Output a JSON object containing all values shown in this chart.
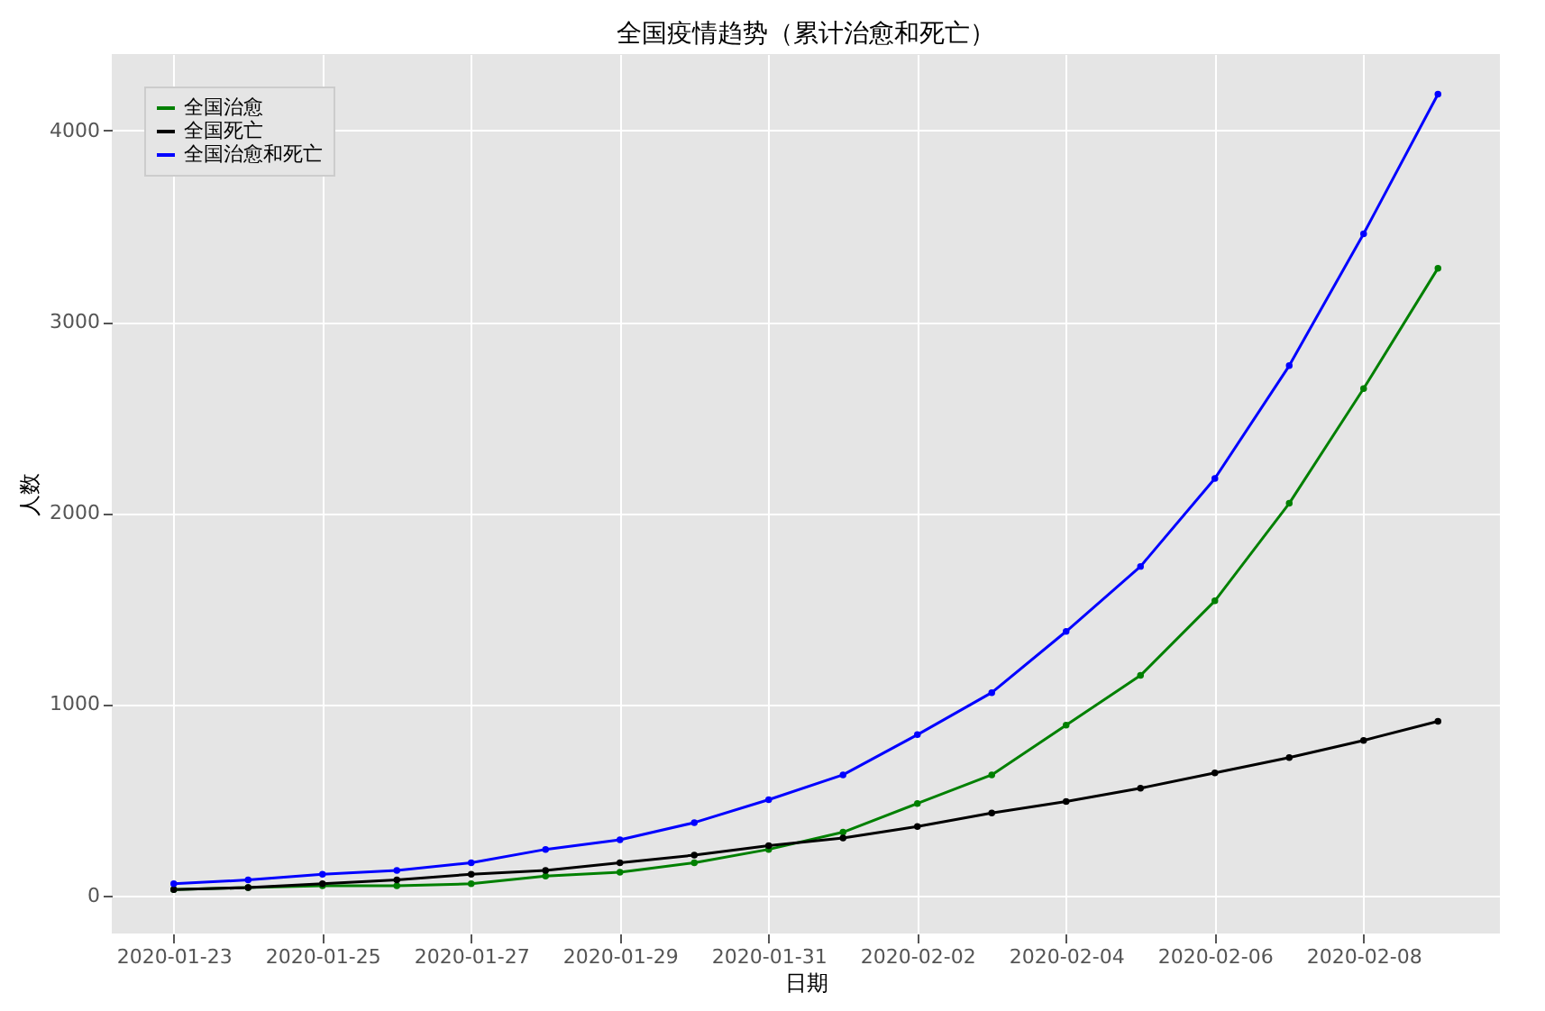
{
  "chart_data": {
    "type": "line",
    "title": "全国疫情趋势（累计治愈和死亡）",
    "xlabel": "日期",
    "ylabel": "人数",
    "x": [
      "2020-01-23",
      "2020-01-24",
      "2020-01-25",
      "2020-01-26",
      "2020-01-27",
      "2020-01-28",
      "2020-01-29",
      "2020-01-30",
      "2020-01-31",
      "2020-02-01",
      "2020-02-02",
      "2020-02-03",
      "2020-02-04",
      "2020-02-05",
      "2020-02-06",
      "2020-02-07",
      "2020-02-08",
      "2020-02-09"
    ],
    "series": [
      {
        "name": "全国治愈",
        "color": "#008000",
        "values": [
          30,
          40,
          50,
          50,
          60,
          100,
          120,
          170,
          240,
          330,
          480,
          630,
          890,
          1150,
          1540,
          2050,
          2650,
          3280
        ]
      },
      {
        "name": "全国死亡",
        "color": "#000000",
        "values": [
          30,
          40,
          60,
          80,
          110,
          130,
          170,
          210,
          260,
          300,
          360,
          430,
          490,
          560,
          640,
          720,
          810,
          910
        ]
      },
      {
        "name": "全国治愈和死亡",
        "color": "#0000ff",
        "values": [
          60,
          80,
          110,
          130,
          170,
          240,
          290,
          380,
          500,
          630,
          840,
          1060,
          1380,
          1720,
          2180,
          2770,
          3460,
          4190
        ]
      }
    ],
    "xlim": [
      "2020-01-22T04:00",
      "2020-02-09T20:00"
    ],
    "xticks": [
      "2020-01-23",
      "2020-01-25",
      "2020-01-27",
      "2020-01-29",
      "2020-01-31",
      "2020-02-02",
      "2020-02-04",
      "2020-02-06",
      "2020-02-08"
    ],
    "ylim": [
      -200,
      4400
    ],
    "yticks": [
      0,
      1000,
      2000,
      3000,
      4000
    ],
    "grid": true,
    "legend": "top left",
    "marker": "circle",
    "line_style": "solid"
  }
}
